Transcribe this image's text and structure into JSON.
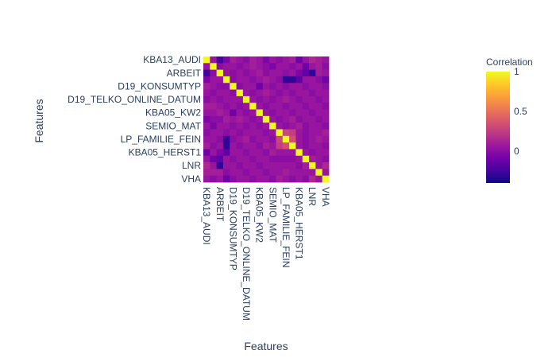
{
  "chart_data": {
    "type": "heatmap",
    "title": "",
    "xlabel": "Features",
    "ylabel": "Features",
    "n": 19,
    "features": [
      "KBA13_AUDI",
      "",
      "ARBEIT",
      "",
      "D19_KONSUMTYP",
      "",
      "D19_TELKO_ONLINE_DATUM",
      "",
      "KBA05_KW2",
      "",
      "SEMIO_MAT",
      "",
      "LP_FAMILIE_FEIN",
      "",
      "KBA05_HERST1",
      "",
      "LNR",
      "",
      "VHA"
    ],
    "tick_labels": [
      "KBA13_AUDI",
      "ARBEIT",
      "D19_KONSUMTYP",
      "D19_TELKO_ONLINE_DATUM",
      "KBA05_KW2",
      "SEMIO_MAT",
      "LP_FAMILIE_FEIN",
      "KBA05_HERST1",
      "LNR",
      "VHA"
    ],
    "z": [
      [
        1.0,
        0.05,
        -0.25,
        -0.05,
        0.1,
        0.05,
        0.0,
        0.1,
        0.05,
        -0.05,
        0.05,
        0.0,
        0.05,
        0.1,
        -0.1,
        0.05,
        0.15,
        0.1,
        0.05
      ],
      [
        0.05,
        1.0,
        0.0,
        0.05,
        0.05,
        0.0,
        0.05,
        0.1,
        0.05,
        0.0,
        -0.05,
        0.05,
        0.05,
        0.0,
        0.05,
        -0.1,
        0.05,
        0.1,
        0.0
      ],
      [
        -0.25,
        0.0,
        1.0,
        0.05,
        0.0,
        0.05,
        0.0,
        0.05,
        0.1,
        0.0,
        0.05,
        0.05,
        0.0,
        0.05,
        -0.05,
        -0.15,
        -0.3,
        0.1,
        0.05
      ],
      [
        -0.05,
        0.05,
        0.05,
        1.0,
        0.0,
        0.05,
        0.05,
        0.0,
        0.05,
        0.1,
        0.05,
        0.0,
        -0.3,
        -0.3,
        -0.15,
        0.05,
        0.05,
        0.0,
        -0.1
      ],
      [
        0.1,
        0.05,
        0.0,
        0.0,
        1.0,
        0.0,
        0.05,
        0.05,
        -0.1,
        0.05,
        0.0,
        0.05,
        0.0,
        0.05,
        0.05,
        0.0,
        0.05,
        0.05,
        0.0
      ],
      [
        0.05,
        0.0,
        0.05,
        0.05,
        0.0,
        1.0,
        0.05,
        0.0,
        0.05,
        0.1,
        0.05,
        0.0,
        0.05,
        0.0,
        0.05,
        0.05,
        0.0,
        0.05,
        0.05
      ],
      [
        0.0,
        0.05,
        0.0,
        0.05,
        0.05,
        0.05,
        1.0,
        0.05,
        0.0,
        0.05,
        0.0,
        0.05,
        0.1,
        0.05,
        0.0,
        0.05,
        0.05,
        0.0,
        0.05
      ],
      [
        0.1,
        0.1,
        0.05,
        0.0,
        0.05,
        0.0,
        0.05,
        1.0,
        0.05,
        0.0,
        0.05,
        0.05,
        0.0,
        0.05,
        0.05,
        0.0,
        0.05,
        0.05,
        0.0
      ],
      [
        0.05,
        0.05,
        0.1,
        0.05,
        -0.1,
        0.05,
        0.0,
        0.05,
        1.0,
        0.05,
        0.0,
        0.05,
        0.05,
        0.0,
        0.05,
        0.05,
        0.0,
        0.05,
        0.05
      ],
      [
        -0.05,
        0.0,
        0.0,
        0.1,
        0.05,
        0.1,
        0.05,
        0.0,
        0.05,
        1.0,
        0.05,
        0.0,
        0.05,
        0.1,
        0.0,
        0.05,
        0.05,
        0.0,
        0.05
      ],
      [
        0.05,
        -0.05,
        0.05,
        0.05,
        0.0,
        0.05,
        0.0,
        0.05,
        0.0,
        0.05,
        1.0,
        0.05,
        0.0,
        0.05,
        0.1,
        0.0,
        0.05,
        0.05,
        0.0
      ],
      [
        0.0,
        0.05,
        0.05,
        0.0,
        0.05,
        0.0,
        0.05,
        0.05,
        0.05,
        0.0,
        0.05,
        1.0,
        0.3,
        0.25,
        0.05,
        0.0,
        0.05,
        0.05,
        0.1
      ],
      [
        0.05,
        0.05,
        0.0,
        -0.3,
        0.0,
        0.05,
        0.1,
        0.0,
        0.05,
        0.05,
        0.0,
        0.3,
        1.0,
        0.35,
        0.05,
        0.0,
        0.05,
        0.1,
        0.05
      ],
      [
        0.1,
        0.0,
        0.05,
        -0.3,
        0.05,
        0.0,
        0.05,
        0.05,
        0.0,
        0.1,
        0.05,
        0.25,
        0.35,
        1.0,
        0.05,
        0.0,
        0.05,
        0.05,
        0.0
      ],
      [
        -0.1,
        0.05,
        -0.05,
        -0.15,
        0.05,
        0.05,
        0.0,
        0.05,
        0.05,
        0.0,
        0.1,
        0.05,
        0.05,
        0.05,
        1.0,
        0.05,
        0.0,
        0.05,
        0.05
      ],
      [
        0.05,
        -0.1,
        -0.15,
        0.05,
        0.0,
        0.05,
        0.05,
        0.0,
        0.05,
        0.05,
        0.0,
        0.0,
        0.0,
        0.0,
        0.05,
        1.0,
        0.1,
        0.05,
        0.0
      ],
      [
        0.15,
        0.05,
        -0.3,
        0.05,
        0.05,
        0.0,
        0.05,
        0.05,
        0.0,
        0.05,
        0.05,
        0.05,
        0.05,
        0.05,
        0.0,
        0.1,
        1.0,
        0.05,
        0.15
      ],
      [
        0.1,
        0.1,
        0.1,
        0.0,
        0.05,
        0.05,
        0.0,
        0.05,
        0.05,
        0.0,
        0.05,
        0.05,
        0.1,
        0.05,
        0.05,
        0.05,
        0.05,
        1.0,
        0.05
      ],
      [
        0.05,
        0.0,
        0.05,
        -0.1,
        0.0,
        0.05,
        0.05,
        0.0,
        0.05,
        0.05,
        0.0,
        0.1,
        0.05,
        0.0,
        0.05,
        0.0,
        0.15,
        0.05,
        1.0
      ]
    ],
    "zmin": -0.4,
    "zmax": 1,
    "colorscale": [
      "#0d0887",
      "#46039f",
      "#7201a8",
      "#9c179e",
      "#bd3786",
      "#d8576b",
      "#ed7953",
      "#fb9f3a",
      "#fdca26",
      "#f0f921"
    ],
    "colorbar": {
      "title": "Correlation",
      "ticks": [
        0,
        0.5,
        1
      ],
      "tick_labels": [
        "0",
        "0.5",
        "1"
      ]
    }
  }
}
